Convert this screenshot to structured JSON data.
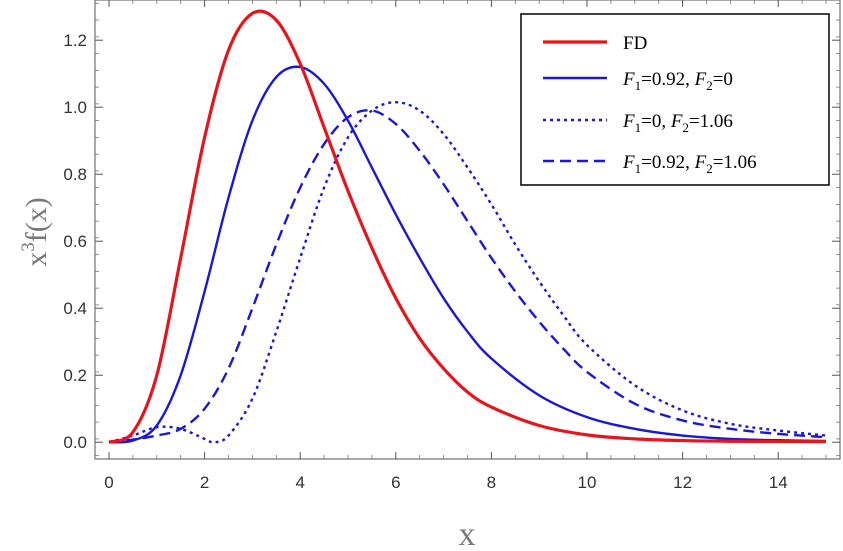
{
  "chart_data": {
    "type": "line",
    "xlabel": "x",
    "ylabel_base": "x",
    "ylabel_exp": "3",
    "ylabel_rest": "f(x)",
    "xlim": [
      0,
      15
    ],
    "ylim": [
      -0.05,
      1.32
    ],
    "xticks": [
      0,
      2,
      4,
      6,
      8,
      10,
      12,
      14
    ],
    "yticks": [
      0.0,
      0.2,
      0.4,
      0.6,
      0.8,
      1.0,
      1.2
    ],
    "grid": false,
    "legend_position": "top-right",
    "series": [
      {
        "name": "FD",
        "legend_parts": [
          {
            "t": "FD",
            "i": false
          }
        ],
        "color": "#e8141b",
        "style": "solid",
        "points": [
          [
            0,
            0
          ],
          [
            0.5,
            0.03
          ],
          [
            1,
            0.2
          ],
          [
            1.5,
            0.55
          ],
          [
            2,
            0.91
          ],
          [
            2.5,
            1.17
          ],
          [
            3,
            1.28
          ],
          [
            3.5,
            1.26
          ],
          [
            4,
            1.13
          ],
          [
            4.5,
            0.94
          ],
          [
            5,
            0.75
          ],
          [
            5.5,
            0.58
          ],
          [
            6,
            0.43
          ],
          [
            6.5,
            0.31
          ],
          [
            7,
            0.22
          ],
          [
            7.5,
            0.15
          ],
          [
            8,
            0.105
          ],
          [
            9,
            0.05
          ],
          [
            10,
            0.022
          ],
          [
            11,
            0.01
          ],
          [
            12,
            0.005
          ],
          [
            13,
            0.003
          ],
          [
            15,
            0.002
          ]
        ]
      },
      {
        "name": "F1=0.92, F2=0",
        "legend_parts": [
          {
            "t": "F",
            "i": true
          },
          {
            "t": "1",
            "sub": true
          },
          {
            "t": "=0.92, ",
            "i": false
          },
          {
            "t": "F",
            "i": true
          },
          {
            "t": "2",
            "sub": true
          },
          {
            "t": "=0",
            "i": false
          }
        ],
        "color": "#1818d6",
        "style": "solid",
        "points": [
          [
            0,
            0
          ],
          [
            0.5,
            0.005
          ],
          [
            1,
            0.05
          ],
          [
            1.5,
            0.2
          ],
          [
            2,
            0.45
          ],
          [
            2.5,
            0.73
          ],
          [
            3,
            0.96
          ],
          [
            3.5,
            1.09
          ],
          [
            4,
            1.12
          ],
          [
            4.5,
            1.07
          ],
          [
            5,
            0.96
          ],
          [
            5.5,
            0.82
          ],
          [
            6,
            0.68
          ],
          [
            6.5,
            0.55
          ],
          [
            7,
            0.43
          ],
          [
            7.5,
            0.33
          ],
          [
            8,
            0.25
          ],
          [
            9,
            0.14
          ],
          [
            10,
            0.075
          ],
          [
            11,
            0.04
          ],
          [
            12,
            0.02
          ],
          [
            13,
            0.01
          ],
          [
            14,
            0.006
          ],
          [
            15,
            0.004
          ]
        ]
      },
      {
        "name": "F1=0, F2=1.06",
        "legend_parts": [
          {
            "t": "F",
            "i": true
          },
          {
            "t": "1",
            "sub": true
          },
          {
            "t": "=0, ",
            "i": false
          },
          {
            "t": "F",
            "i": true
          },
          {
            "t": "2",
            "sub": true
          },
          {
            "t": "=1.06",
            "i": false
          }
        ],
        "color": "#1818d6",
        "style": "dotted",
        "points": [
          [
            0,
            0
          ],
          [
            0.5,
            0.02
          ],
          [
            1,
            0.045
          ],
          [
            1.5,
            0.04
          ],
          [
            2,
            0.01
          ],
          [
            2.2,
            0.0
          ],
          [
            2.5,
            0.02
          ],
          [
            3,
            0.13
          ],
          [
            3.5,
            0.33
          ],
          [
            4,
            0.55
          ],
          [
            4.5,
            0.76
          ],
          [
            5,
            0.91
          ],
          [
            5.5,
            0.99
          ],
          [
            6,
            1.015
          ],
          [
            6.5,
            0.99
          ],
          [
            7,
            0.92
          ],
          [
            7.5,
            0.82
          ],
          [
            8,
            0.71
          ],
          [
            8.5,
            0.59
          ],
          [
            9,
            0.48
          ],
          [
            9.5,
            0.38
          ],
          [
            10,
            0.29
          ],
          [
            11,
            0.17
          ],
          [
            12,
            0.095
          ],
          [
            13,
            0.055
          ],
          [
            14,
            0.035
          ],
          [
            15,
            0.02
          ]
        ]
      },
      {
        "name": "F1=0.92, F2=1.06",
        "legend_parts": [
          {
            "t": "F",
            "i": true
          },
          {
            "t": "1",
            "sub": true
          },
          {
            "t": "=0.92, ",
            "i": false
          },
          {
            "t": "F",
            "i": true
          },
          {
            "t": "2",
            "sub": true
          },
          {
            "t": "=1.06",
            "i": false
          }
        ],
        "color": "#1818d6",
        "style": "dashed",
        "points": [
          [
            0,
            0
          ],
          [
            0.5,
            0.008
          ],
          [
            1,
            0.02
          ],
          [
            1.5,
            0.04
          ],
          [
            2,
            0.1
          ],
          [
            2.5,
            0.22
          ],
          [
            3,
            0.4
          ],
          [
            3.5,
            0.59
          ],
          [
            4,
            0.76
          ],
          [
            4.5,
            0.89
          ],
          [
            5,
            0.97
          ],
          [
            5.5,
            0.99
          ],
          [
            6,
            0.95
          ],
          [
            6.5,
            0.87
          ],
          [
            7,
            0.77
          ],
          [
            7.5,
            0.66
          ],
          [
            8,
            0.55
          ],
          [
            8.5,
            0.45
          ],
          [
            9,
            0.36
          ],
          [
            9.5,
            0.28
          ],
          [
            10,
            0.21
          ],
          [
            11,
            0.115
          ],
          [
            12,
            0.065
          ],
          [
            13,
            0.04
          ],
          [
            14,
            0.025
          ],
          [
            15,
            0.015
          ]
        ]
      }
    ]
  }
}
